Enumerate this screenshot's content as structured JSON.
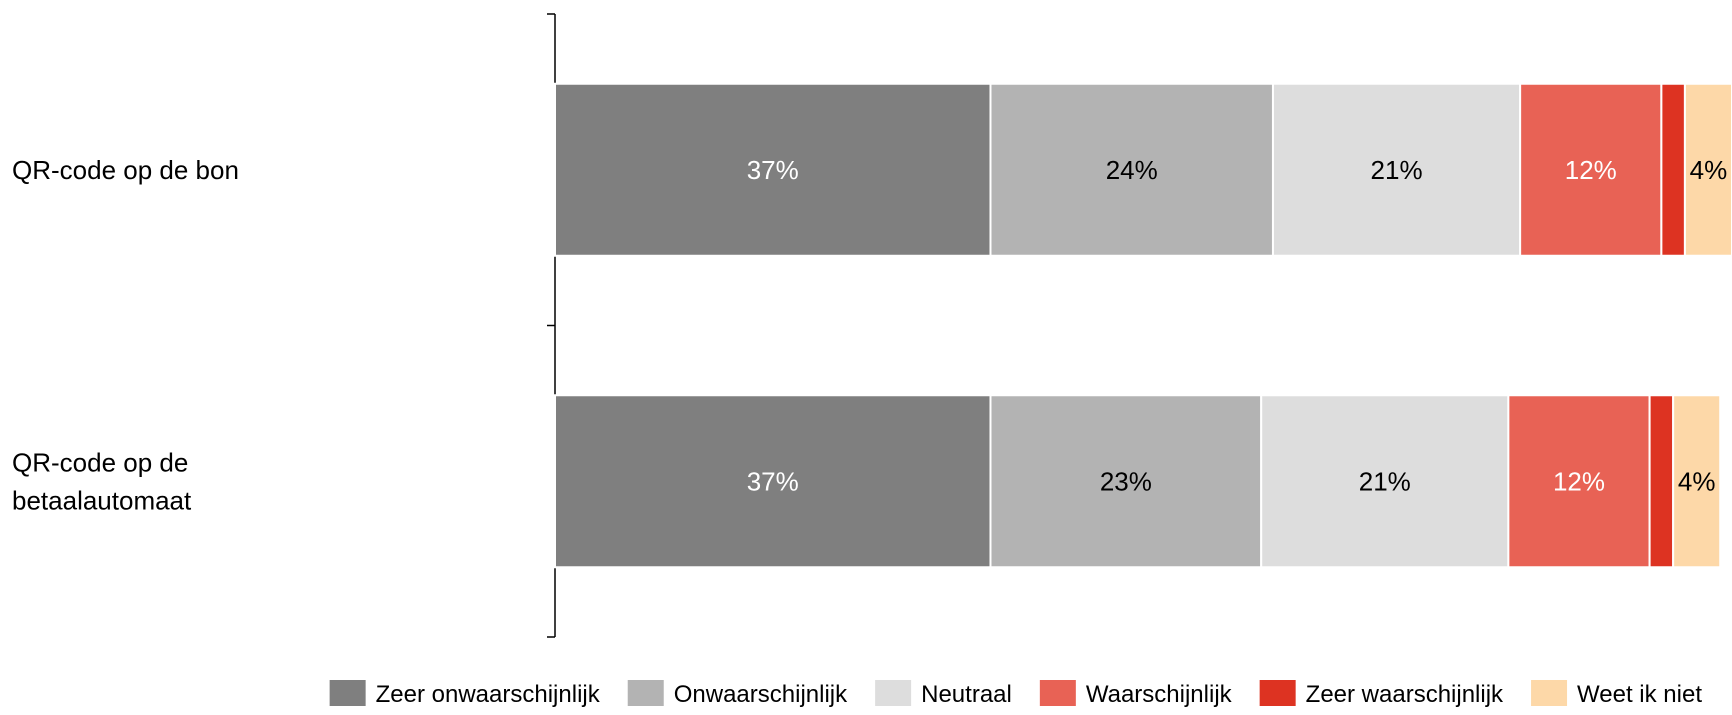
{
  "chart_data": {
    "type": "bar",
    "orientation": "horizontal",
    "stacked": true,
    "categories": [
      "QR-code op de bon",
      "QR-code op de betaalautomaat"
    ],
    "category_lines": [
      [
        "QR-code op de bon"
      ],
      [
        "QR-code op de",
        "betaalautomaat"
      ]
    ],
    "series": [
      {
        "name": "Zeer onwaarschijnlijk",
        "values": [
          37,
          37
        ],
        "labels": [
          "37%",
          "37%"
        ],
        "color": "#7f7f7f",
        "label_color": "#ffffff"
      },
      {
        "name": "Onwaarschijnlijk",
        "values": [
          24,
          23
        ],
        "labels": [
          "24%",
          "23%"
        ],
        "color": "#b3b3b3",
        "label_color": "#000000"
      },
      {
        "name": "Neutraal",
        "values": [
          21,
          21
        ],
        "labels": [
          "21%",
          "21%"
        ],
        "color": "#dddddd",
        "label_color": "#000000"
      },
      {
        "name": "Waarschijnlijk",
        "values": [
          12,
          12
        ],
        "labels": [
          "12%",
          "12%"
        ],
        "color": "#e86255",
        "label_color": "#ffffff"
      },
      {
        "name": "Zeer waarschijnlijk",
        "values": [
          2,
          2
        ],
        "labels": [
          "",
          ""
        ],
        "color": "#dd3322",
        "label_color": "#ffffff"
      },
      {
        "name": "Weet ik niet",
        "values": [
          4,
          4
        ],
        "labels": [
          "4%",
          "4%"
        ],
        "color": "#fdd8a8",
        "label_color": "#000000"
      }
    ],
    "xlim": [
      0,
      100
    ],
    "legend_position": "bottom",
    "grid": false
  }
}
